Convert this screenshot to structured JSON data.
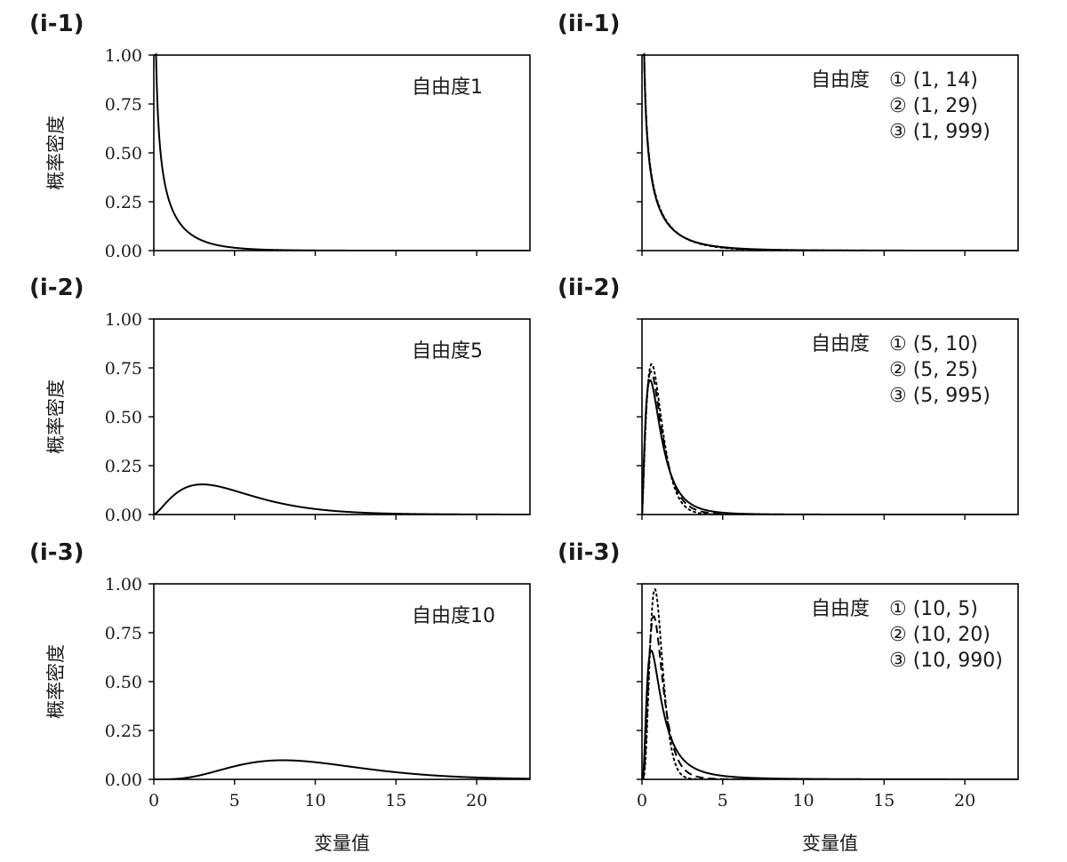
{
  "chart_data": [
    {
      "panel_label": "(i-1)",
      "type": "line",
      "x_range": [
        0,
        23.3
      ],
      "ylim": [
        0,
        1.0
      ],
      "x_ticks": [
        0,
        5,
        10,
        15,
        20
      ],
      "y_ticks": [
        "0.00",
        "0.25",
        "0.50",
        "0.75",
        "1.00"
      ],
      "show_x_tick_labels": false,
      "xlabel": "",
      "ylabel": "概率密度",
      "legend": {
        "title": "自由度1",
        "items": []
      },
      "series": [
        {
          "name": "自由度1",
          "distribution": "chi2",
          "df": 1,
          "style": "solid"
        }
      ]
    },
    {
      "panel_label": "(i-2)",
      "type": "line",
      "x_range": [
        0,
        23.3
      ],
      "ylim": [
        0,
        1.0
      ],
      "x_ticks": [
        0,
        5,
        10,
        15,
        20
      ],
      "y_ticks": [
        "0.00",
        "0.25",
        "0.50",
        "0.75",
        "1.00"
      ],
      "show_x_tick_labels": false,
      "xlabel": "",
      "ylabel": "概率密度",
      "legend": {
        "title": "自由度5",
        "items": []
      },
      "series": [
        {
          "name": "自由度5",
          "distribution": "chi2",
          "df": 5,
          "style": "solid"
        }
      ]
    },
    {
      "panel_label": "(i-3)",
      "type": "line",
      "x_range": [
        0,
        23.3
      ],
      "ylim": [
        0,
        1.0
      ],
      "x_ticks": [
        0,
        5,
        10,
        15,
        20
      ],
      "y_ticks": [
        "0.00",
        "0.25",
        "0.50",
        "0.75",
        "1.00"
      ],
      "show_x_tick_labels": true,
      "xlabel": "变量值",
      "ylabel": "概率密度",
      "legend": {
        "title": "自由度10",
        "items": []
      },
      "series": [
        {
          "name": "自由度10",
          "distribution": "chi2",
          "df": 10,
          "style": "solid"
        }
      ]
    },
    {
      "panel_label": "(ii-1)",
      "type": "line",
      "x_range": [
        0,
        23.3
      ],
      "ylim": [
        0,
        1.0
      ],
      "x_ticks": [
        0,
        5,
        10,
        15,
        20
      ],
      "y_ticks": [],
      "show_x_tick_labels": false,
      "xlabel": "",
      "ylabel": "",
      "legend": {
        "title": "自由度",
        "items": [
          "① (1, 14)",
          "② (1, 29)",
          "③ (1, 999)"
        ]
      },
      "series": [
        {
          "name": "① (1, 14)",
          "distribution": "f",
          "d1": 1,
          "d2": 14,
          "style": "solid"
        },
        {
          "name": "② (1, 29)",
          "distribution": "f",
          "d1": 1,
          "d2": 29,
          "style": "dashed"
        },
        {
          "name": "③ (1, 999)",
          "distribution": "f",
          "d1": 1,
          "d2": 999,
          "style": "dotted"
        }
      ]
    },
    {
      "panel_label": "(ii-2)",
      "type": "line",
      "x_range": [
        0,
        23.3
      ],
      "ylim": [
        0,
        1.0
      ],
      "x_ticks": [
        0,
        5,
        10,
        15,
        20
      ],
      "y_ticks": [],
      "show_x_tick_labels": false,
      "xlabel": "",
      "ylabel": "",
      "legend": {
        "title": "自由度",
        "items": [
          "① (5, 10)",
          "② (5, 25)",
          "③ (5, 995)"
        ]
      },
      "series": [
        {
          "name": "① (5, 10)",
          "distribution": "f",
          "d1": 5,
          "d2": 10,
          "style": "solid"
        },
        {
          "name": "② (5, 25)",
          "distribution": "f",
          "d1": 5,
          "d2": 25,
          "style": "dashed"
        },
        {
          "name": "③ (5, 995)",
          "distribution": "f",
          "d1": 5,
          "d2": 995,
          "style": "dotted"
        }
      ]
    },
    {
      "panel_label": "(ii-3)",
      "type": "line",
      "x_range": [
        0,
        23.3
      ],
      "ylim": [
        0,
        1.0
      ],
      "x_ticks": [
        0,
        5,
        10,
        15,
        20
      ],
      "y_ticks": [],
      "show_x_tick_labels": true,
      "xlabel": "变量值",
      "ylabel": "",
      "legend": {
        "title": "自由度",
        "items": [
          "① (10, 5)",
          "② (10, 20)",
          "③ (10, 990)"
        ]
      },
      "series": [
        {
          "name": "① (10, 5)",
          "distribution": "f",
          "d1": 10,
          "d2": 5,
          "style": "solid"
        },
        {
          "name": "② (10, 20)",
          "distribution": "f",
          "d1": 10,
          "d2": 20,
          "style": "dashed"
        },
        {
          "name": "③ (10, 990)",
          "distribution": "f",
          "d1": 10,
          "d2": 990,
          "style": "dotted"
        }
      ]
    }
  ]
}
